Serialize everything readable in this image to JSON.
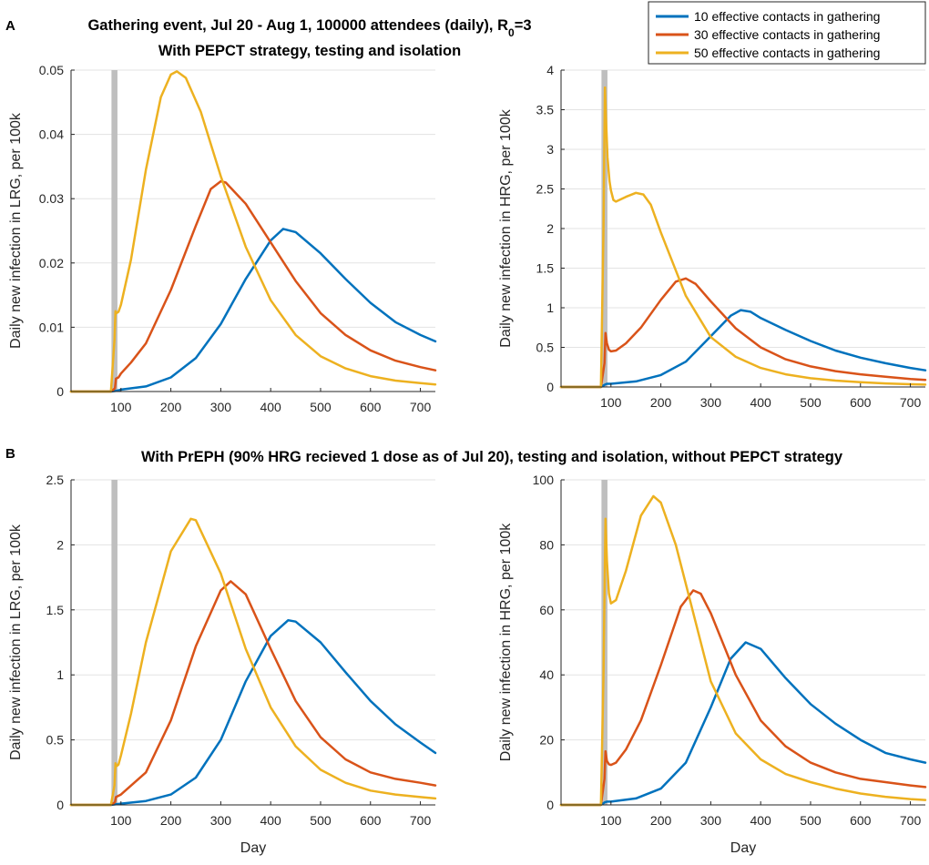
{
  "panel_labels": [
    "A",
    "B"
  ],
  "title_a_line1_main": "Gathering event, Jul 20 - Aug 1, 100000 attendees (daily), R",
  "title_a_line1_sub": "0",
  "title_a_line1_tail": "=3",
  "title_a_line2": "With PEPCT strategy, testing and isolation",
  "title_b": "With PrEPH (90% HRG recieved 1 dose as of Jul 20), testing and isolation, without PEPCT strategy",
  "legend": [
    {
      "label": "10 effective contacts in gathering",
      "color": "#0072BD"
    },
    {
      "label": "30 effective contacts in gathering",
      "color": "#D95319"
    },
    {
      "label": "50 effective contacts in gathering",
      "color": "#EDB120"
    }
  ],
  "event_band": {
    "x_start": 81,
    "x_end": 93,
    "color": "#BFBFBF"
  },
  "chart_data": [
    {
      "type": "line",
      "id": "A-left",
      "xlabel": "",
      "ylabel": "Daily new infection in LRG, per 100k",
      "xlim": [
        0,
        730
      ],
      "ylim": [
        0,
        0.05
      ],
      "xticks": [
        100,
        200,
        300,
        400,
        500,
        600,
        700
      ],
      "yticks": [
        0,
        0.01,
        0.02,
        0.03,
        0.04,
        0.05
      ],
      "yticklabels": [
        "0",
        "0.01",
        "0.02",
        "0.03",
        "0.04",
        "0.05"
      ],
      "grid": "y",
      "series": [
        {
          "name": "10 effective contacts in gathering",
          "color": "#0072BD",
          "x": [
            0,
            80,
            90,
            100,
            150,
            200,
            250,
            300,
            350,
            400,
            425,
            450,
            500,
            550,
            600,
            650,
            700,
            730
          ],
          "y": [
            0,
            0,
            0.0001,
            0.0003,
            0.0008,
            0.0022,
            0.0052,
            0.0105,
            0.0175,
            0.0235,
            0.0253,
            0.0248,
            0.0215,
            0.0175,
            0.0138,
            0.0108,
            0.0088,
            0.0078
          ]
        },
        {
          "name": "30 effective contacts in gathering",
          "color": "#D95319",
          "x": [
            0,
            80,
            88,
            90,
            95,
            100,
            120,
            150,
            200,
            250,
            280,
            300,
            310,
            350,
            400,
            450,
            500,
            550,
            600,
            650,
            700,
            730
          ],
          "y": [
            0,
            0,
            0.0005,
            0.002,
            0.0022,
            0.0028,
            0.0045,
            0.0075,
            0.0158,
            0.0258,
            0.0315,
            0.0327,
            0.0325,
            0.0292,
            0.0232,
            0.0172,
            0.0122,
            0.0088,
            0.0064,
            0.0048,
            0.0038,
            0.0033
          ]
        },
        {
          "name": "50 effective contacts in gathering",
          "color": "#EDB120",
          "x": [
            0,
            80,
            87,
            89,
            91,
            95,
            100,
            120,
            150,
            180,
            200,
            212,
            230,
            260,
            300,
            350,
            400,
            450,
            500,
            550,
            600,
            650,
            700,
            730
          ],
          "y": [
            0,
            0,
            0.008,
            0.0125,
            0.0122,
            0.0124,
            0.0135,
            0.0205,
            0.0345,
            0.0458,
            0.0493,
            0.0498,
            0.0488,
            0.0435,
            0.0335,
            0.0225,
            0.0142,
            0.0088,
            0.0055,
            0.0036,
            0.0024,
            0.0017,
            0.0013,
            0.0011
          ]
        }
      ]
    },
    {
      "type": "line",
      "id": "A-right",
      "xlabel": "",
      "ylabel": "Daily new infection in HRG, per 100k",
      "xlim": [
        0,
        730
      ],
      "ylim": [
        0,
        4
      ],
      "xticks": [
        100,
        200,
        300,
        400,
        500,
        600,
        700
      ],
      "yticks": [
        0,
        0.5,
        1,
        1.5,
        2,
        2.5,
        3,
        3.5,
        4
      ],
      "yticklabels": [
        "0",
        "0.5",
        "1",
        "1.5",
        "2",
        "2.5",
        "3",
        "3.5",
        "4"
      ],
      "grid": "y",
      "series": [
        {
          "name": "10 effective contacts in gathering",
          "color": "#0072BD",
          "x": [
            0,
            80,
            88,
            92,
            100,
            150,
            200,
            250,
            300,
            340,
            360,
            380,
            400,
            450,
            500,
            550,
            600,
            650,
            700,
            730
          ],
          "y": [
            0,
            0,
            0.03,
            0.04,
            0.04,
            0.07,
            0.15,
            0.32,
            0.64,
            0.9,
            0.97,
            0.95,
            0.87,
            0.72,
            0.58,
            0.46,
            0.37,
            0.3,
            0.24,
            0.21
          ]
        },
        {
          "name": "30 effective contacts in gathering",
          "color": "#D95319",
          "x": [
            0,
            80,
            87,
            89,
            92,
            96,
            100,
            110,
            130,
            160,
            200,
            230,
            250,
            270,
            300,
            350,
            400,
            450,
            500,
            550,
            600,
            650,
            700,
            730
          ],
          "y": [
            0,
            0,
            0.3,
            0.68,
            0.55,
            0.47,
            0.45,
            0.46,
            0.55,
            0.75,
            1.1,
            1.33,
            1.37,
            1.3,
            1.08,
            0.74,
            0.5,
            0.35,
            0.26,
            0.2,
            0.16,
            0.13,
            0.1,
            0.09
          ]
        },
        {
          "name": "50 effective contacts in gathering",
          "color": "#EDB120",
          "x": [
            0,
            80,
            85,
            88,
            90,
            93,
            97,
            100,
            105,
            110,
            130,
            150,
            165,
            180,
            200,
            250,
            300,
            350,
            400,
            450,
            500,
            550,
            600,
            650,
            700,
            730
          ],
          "y": [
            0,
            0,
            2.0,
            3.78,
            3.4,
            2.9,
            2.6,
            2.48,
            2.36,
            2.34,
            2.4,
            2.45,
            2.43,
            2.3,
            1.95,
            1.15,
            0.63,
            0.38,
            0.24,
            0.16,
            0.11,
            0.08,
            0.06,
            0.045,
            0.035,
            0.03
          ]
        }
      ]
    },
    {
      "type": "line",
      "id": "B-left",
      "xlabel": "Day",
      "ylabel": "Daily new infection in LRG, per 100k",
      "xlim": [
        0,
        730
      ],
      "ylim": [
        0,
        2.5
      ],
      "xticks": [
        100,
        200,
        300,
        400,
        500,
        600,
        700
      ],
      "yticks": [
        0,
        0.5,
        1,
        1.5,
        2,
        2.5
      ],
      "yticklabels": [
        "0",
        "0.5",
        "1",
        "1.5",
        "2",
        "2.5"
      ],
      "grid": "y",
      "series": [
        {
          "name": "10 effective contacts in gathering",
          "color": "#0072BD",
          "x": [
            0,
            80,
            90,
            100,
            150,
            200,
            250,
            300,
            350,
            400,
            435,
            450,
            500,
            550,
            600,
            650,
            700,
            730
          ],
          "y": [
            0,
            0,
            0.005,
            0.01,
            0.03,
            0.08,
            0.21,
            0.5,
            0.95,
            1.3,
            1.42,
            1.41,
            1.25,
            1.02,
            0.8,
            0.62,
            0.48,
            0.4
          ]
        },
        {
          "name": "30 effective contacts in gathering",
          "color": "#D95319",
          "x": [
            0,
            80,
            88,
            90,
            100,
            150,
            200,
            250,
            300,
            320,
            350,
            400,
            450,
            500,
            550,
            600,
            650,
            700,
            730
          ],
          "y": [
            0,
            0,
            0.02,
            0.06,
            0.08,
            0.25,
            0.65,
            1.22,
            1.65,
            1.72,
            1.62,
            1.2,
            0.8,
            0.52,
            0.35,
            0.25,
            0.2,
            0.17,
            0.15
          ]
        },
        {
          "name": "50 effective contacts in gathering",
          "color": "#EDB120",
          "x": [
            0,
            80,
            87,
            89,
            92,
            95,
            100,
            120,
            150,
            200,
            240,
            250,
            300,
            350,
            400,
            450,
            500,
            550,
            600,
            650,
            700,
            730
          ],
          "y": [
            0,
            0,
            0.15,
            0.32,
            0.3,
            0.31,
            0.38,
            0.7,
            1.25,
            1.95,
            2.2,
            2.19,
            1.78,
            1.2,
            0.75,
            0.45,
            0.27,
            0.17,
            0.11,
            0.08,
            0.06,
            0.05
          ]
        }
      ]
    },
    {
      "type": "line",
      "id": "B-right",
      "xlabel": "Day",
      "ylabel": "Daily new infection in HRG, per 100k",
      "xlim": [
        0,
        730
      ],
      "ylim": [
        0,
        100
      ],
      "xticks": [
        100,
        200,
        300,
        400,
        500,
        600,
        700
      ],
      "yticks": [
        0,
        20,
        40,
        60,
        80,
        100
      ],
      "yticklabels": [
        "0",
        "20",
        "40",
        "60",
        "80",
        "100"
      ],
      "grid": "y",
      "series": [
        {
          "name": "10 effective contacts in gathering",
          "color": "#0072BD",
          "x": [
            0,
            80,
            88,
            92,
            100,
            150,
            200,
            250,
            300,
            340,
            370,
            400,
            450,
            500,
            550,
            600,
            650,
            700,
            730
          ],
          "y": [
            0,
            0,
            0.8,
            1.0,
            1.0,
            2.0,
            5.0,
            13,
            30,
            45,
            50,
            48,
            39,
            31,
            25,
            20,
            16,
            14,
            13
          ]
        },
        {
          "name": "30 effective contacts in gathering",
          "color": "#D95319",
          "x": [
            0,
            80,
            87,
            89,
            92,
            96,
            100,
            110,
            130,
            160,
            200,
            240,
            265,
            280,
            300,
            350,
            400,
            450,
            500,
            550,
            600,
            650,
            700,
            730
          ],
          "y": [
            0,
            0,
            8,
            16.5,
            13.5,
            12.5,
            12.3,
            13,
            17,
            26,
            43,
            61,
            66,
            65,
            59,
            40,
            26,
            18,
            13,
            10,
            8,
            7,
            6,
            5.5
          ]
        },
        {
          "name": "50 effective contacts in gathering",
          "color": "#EDB120",
          "x": [
            0,
            80,
            85,
            89,
            92,
            96,
            100,
            110,
            130,
            160,
            185,
            200,
            230,
            260,
            300,
            350,
            400,
            450,
            500,
            550,
            600,
            650,
            700,
            730
          ],
          "y": [
            0,
            0,
            40,
            88,
            75,
            65,
            62,
            63,
            72,
            89,
            95,
            93,
            80,
            62,
            38,
            22,
            14,
            9.5,
            7,
            5,
            3.5,
            2.5,
            1.8,
            1.5
          ]
        }
      ]
    }
  ]
}
